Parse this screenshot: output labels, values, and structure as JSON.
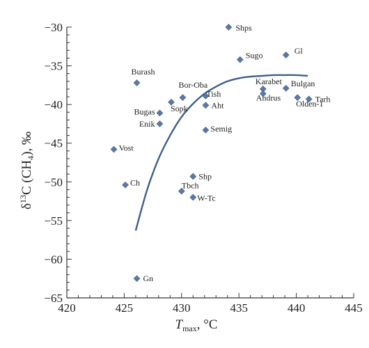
{
  "chart_data": {
    "type": "scatter",
    "xlabel": {
      "main": "T",
      "sub": "max",
      "unit": ", °C"
    },
    "ylabel": {
      "pre": "δ",
      "sup": "13",
      "mid": "C (CH",
      "sub": "4",
      "post": "), ‰"
    },
    "xlim": [
      420,
      445
    ],
    "ylim": [
      -65,
      -30
    ],
    "xticks": [
      420,
      425,
      430,
      435,
      440,
      445
    ],
    "yticks": [
      -30,
      -35,
      -40,
      -45,
      -50,
      -55,
      -60,
      -65
    ],
    "grid": false,
    "marker_color": "#5b79a8",
    "curve_color": "#3e5f8c",
    "points": [
      {
        "label": "Shps",
        "x": 434.1,
        "y": -30.0
      },
      {
        "label": "Gl",
        "x": 439.1,
        "y": -33.6
      },
      {
        "label": "Sugo",
        "x": 435.1,
        "y": -34.2
      },
      {
        "label": "Burash",
        "x": 426.1,
        "y": -37.2
      },
      {
        "label": "Karabet",
        "x": 437.1,
        "y": -38.0
      },
      {
        "label": "Bulgan",
        "x": 439.1,
        "y": -37.9
      },
      {
        "label": "Andrus",
        "x": 437.1,
        "y": -38.6
      },
      {
        "label": "Tish",
        "x": 432.1,
        "y": -38.9
      },
      {
        "label": "Bor-Oba",
        "x": 430.1,
        "y": -39.1
      },
      {
        "label": "Olden-1",
        "x": 440.1,
        "y": -39.1
      },
      {
        "label": "Tarh",
        "x": 441.1,
        "y": -39.3
      },
      {
        "label": "Sopk",
        "x": 429.1,
        "y": -39.7
      },
      {
        "label": "Aht",
        "x": 432.1,
        "y": -40.1
      },
      {
        "label": "Bugas",
        "x": 428.1,
        "y": -41.1
      },
      {
        "label": "Enik",
        "x": 428.1,
        "y": -42.5
      },
      {
        "label": "Semig",
        "x": 432.1,
        "y": -43.3
      },
      {
        "label": "Vost",
        "x": 424.1,
        "y": -45.8
      },
      {
        "label": "Shp",
        "x": 431.0,
        "y": -49.3
      },
      {
        "label": "Ch",
        "x": 425.1,
        "y": -50.4
      },
      {
        "label": "Tbch",
        "x": 430.0,
        "y": -51.2
      },
      {
        "label": "W-Tc",
        "x": 431.0,
        "y": -52.0
      },
      {
        "label": "Gn",
        "x": 426.1,
        "y": -62.5
      }
    ],
    "fit_curve": [
      {
        "x": 426.0,
        "y": -56.3
      },
      {
        "x": 427.0,
        "y": -51.0
      },
      {
        "x": 428.0,
        "y": -47.0
      },
      {
        "x": 429.0,
        "y": -44.0
      },
      {
        "x": 430.0,
        "y": -41.6
      },
      {
        "x": 431.0,
        "y": -39.9
      },
      {
        "x": 432.0,
        "y": -38.6
      },
      {
        "x": 433.0,
        "y": -37.7
      },
      {
        "x": 434.0,
        "y": -37.0
      },
      {
        "x": 435.0,
        "y": -36.6
      },
      {
        "x": 436.0,
        "y": -36.4
      },
      {
        "x": 437.0,
        "y": -36.3
      },
      {
        "x": 438.0,
        "y": -36.2
      },
      {
        "x": 439.0,
        "y": -36.2
      },
      {
        "x": 440.0,
        "y": -36.2
      },
      {
        "x": 441.0,
        "y": -36.3
      }
    ]
  }
}
